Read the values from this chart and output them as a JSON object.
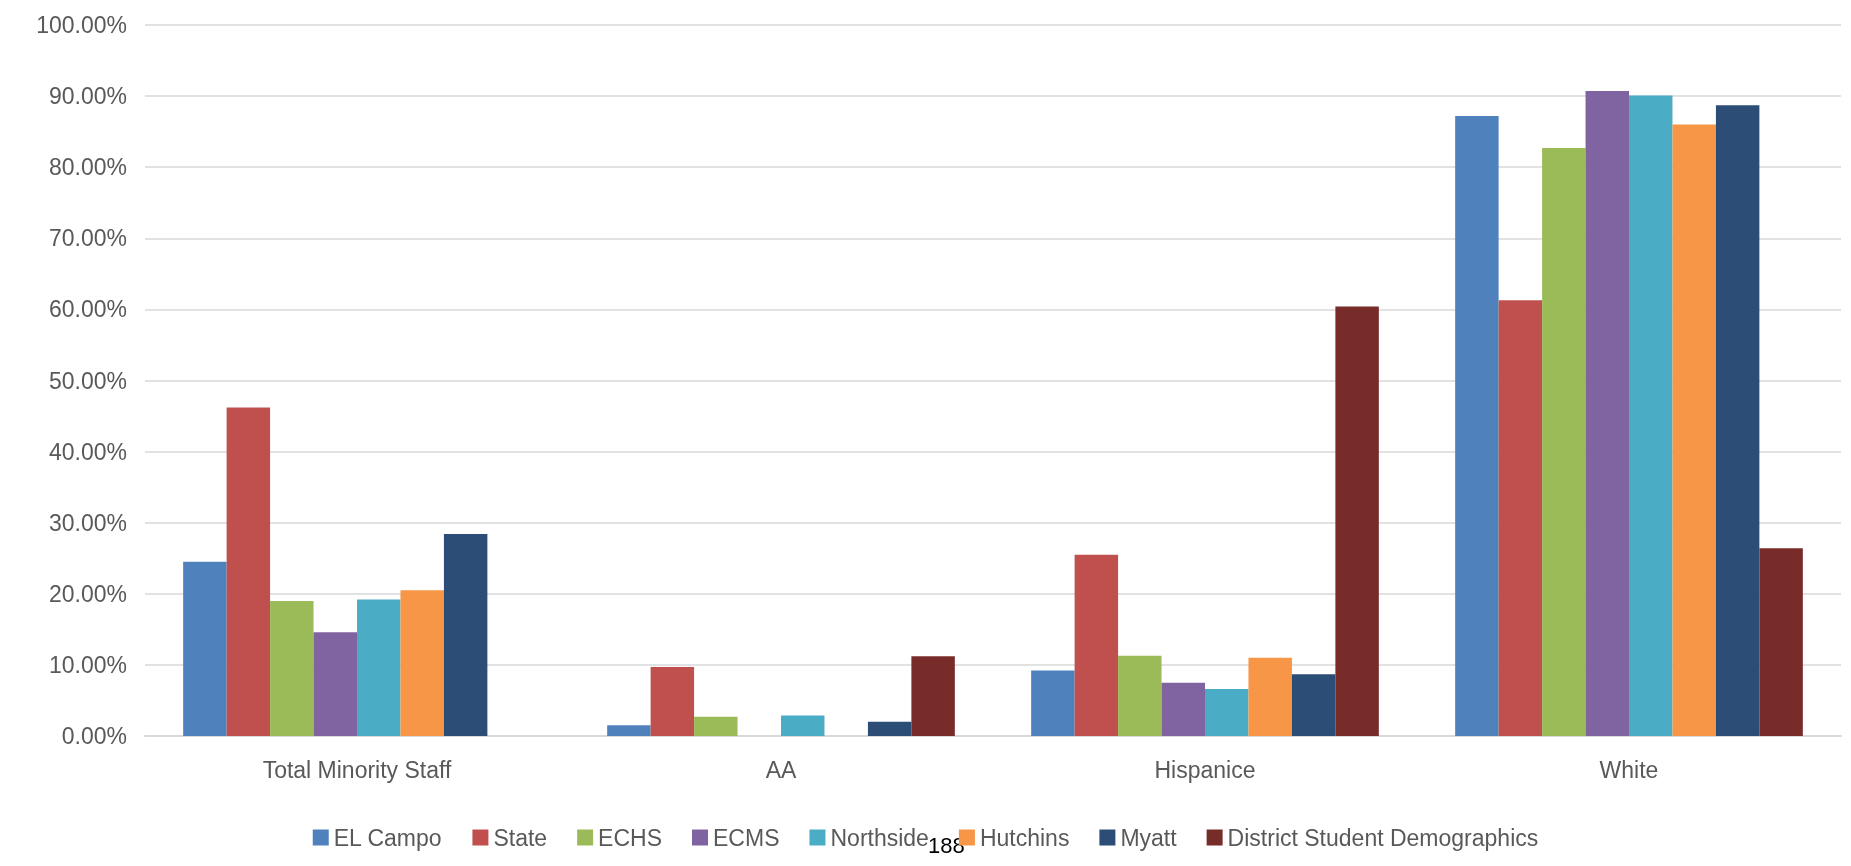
{
  "chart_data": {
    "type": "bar",
    "categories": [
      "Total Minority Staff",
      "AA",
      "Hispanice",
      "White"
    ],
    "series": [
      {
        "name": "EL Campo",
        "color": "#4f81bd",
        "values": [
          24.5,
          1.5,
          9.2,
          87.2
        ]
      },
      {
        "name": "State",
        "color": "#c0504d",
        "values": [
          46.2,
          9.7,
          25.5,
          61.3
        ]
      },
      {
        "name": "ECHS",
        "color": "#9bbb59",
        "values": [
          19.0,
          2.7,
          11.3,
          82.7
        ]
      },
      {
        "name": "ECMS",
        "color": "#8064a2",
        "values": [
          14.6,
          null,
          7.5,
          90.7
        ]
      },
      {
        "name": "Northside",
        "color": "#4bacc6",
        "values": [
          19.2,
          2.9,
          6.6,
          90.1
        ]
      },
      {
        "name": "Hutchins",
        "color": "#f79646",
        "values": [
          20.5,
          null,
          11.0,
          86.0
        ]
      },
      {
        "name": "Myatt",
        "color": "#2c4d75",
        "values": [
          28.4,
          2.0,
          8.7,
          88.7
        ]
      },
      {
        "name": "District Student Demographics",
        "color": "#772c2a",
        "values": [
          null,
          11.2,
          60.4,
          26.4
        ]
      }
    ],
    "ylim": [
      0,
      100
    ],
    "yticks": [
      {
        "value": 0,
        "label": "0.00%"
      },
      {
        "value": 10,
        "label": "10.00%"
      },
      {
        "value": 20,
        "label": "20.00%"
      },
      {
        "value": 30,
        "label": "30.00%"
      },
      {
        "value": 40,
        "label": "40.00%"
      },
      {
        "value": 50,
        "label": "50.00%"
      },
      {
        "value": 60,
        "label": "60.00%"
      },
      {
        "value": 70,
        "label": "70.00%"
      },
      {
        "value": 80,
        "label": "80.00%"
      },
      {
        "value": 90,
        "label": "90.00%"
      },
      {
        "value": 100,
        "label": "100.00%"
      }
    ],
    "grid": "y",
    "legend": "bottom",
    "annotations": [
      "188"
    ]
  }
}
